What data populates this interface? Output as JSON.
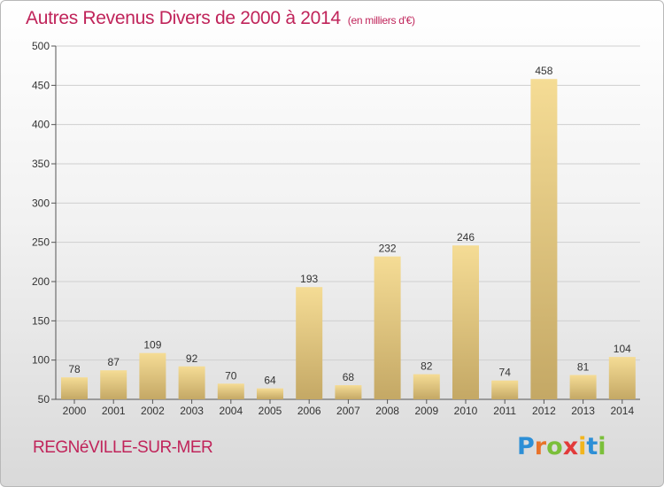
{
  "chart_data": {
    "type": "bar",
    "title": "Autres Revenus Divers de 2000 à 2014",
    "subtitle": "(en milliers d'€)",
    "categories": [
      "2000",
      "2001",
      "2002",
      "2003",
      "2004",
      "2005",
      "2006",
      "2007",
      "2008",
      "2009",
      "2010",
      "2011",
      "2012",
      "2013",
      "2014"
    ],
    "values": [
      78,
      87,
      109,
      92,
      70,
      64,
      193,
      68,
      232,
      82,
      246,
      74,
      458,
      81,
      104
    ],
    "ylim": [
      50,
      500
    ],
    "yticks": [
      50,
      100,
      150,
      200,
      250,
      300,
      350,
      400,
      450,
      500
    ],
    "xlabel": "",
    "ylabel": "",
    "grid": true,
    "bar_color_top": "#f5dc95",
    "bar_color_bottom": "#c4a865"
  },
  "footer": {
    "commune": "REGNéVILLE-SUR-MER",
    "logo_letters": [
      "P",
      "r",
      "o",
      "x",
      "i",
      "t",
      "i"
    ],
    "logo_colors": [
      "#2d8fd6",
      "#e8732a",
      "#7bbf3a",
      "#e23a3a",
      "#f2b51d",
      "#2d8fd6",
      "#7bbf3a"
    ]
  },
  "colors": {
    "title": "#c0245a",
    "grid": "#cfcfcf",
    "axis": "#555555"
  }
}
